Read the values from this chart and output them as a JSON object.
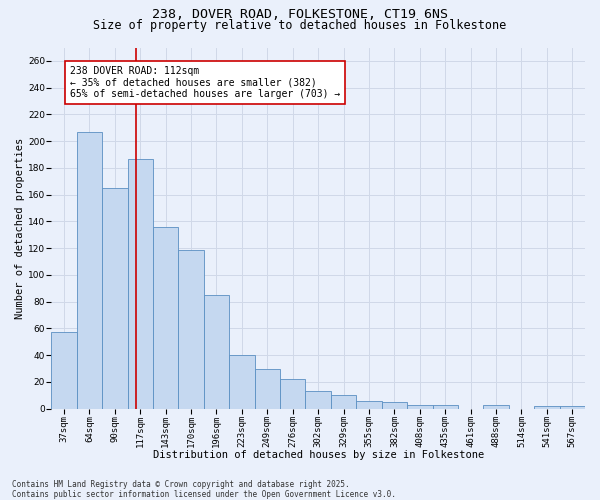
{
  "title_line1": "238, DOVER ROAD, FOLKESTONE, CT19 6NS",
  "title_line2": "Size of property relative to detached houses in Folkestone",
  "xlabel": "Distribution of detached houses by size in Folkestone",
  "ylabel": "Number of detached properties",
  "categories": [
    "37sqm",
    "64sqm",
    "90sqm",
    "117sqm",
    "143sqm",
    "170sqm",
    "196sqm",
    "223sqm",
    "249sqm",
    "276sqm",
    "302sqm",
    "329sqm",
    "355sqm",
    "382sqm",
    "408sqm",
    "435sqm",
    "461sqm",
    "488sqm",
    "514sqm",
    "541sqm",
    "567sqm"
  ],
  "values": [
    57,
    207,
    165,
    187,
    136,
    119,
    85,
    40,
    30,
    22,
    13,
    10,
    6,
    5,
    3,
    3,
    0,
    3,
    0,
    2,
    2
  ],
  "bar_color": "#c5d8f0",
  "bar_edge_color": "#5a8fc2",
  "vline_color": "#cc0000",
  "annotation_text": "238 DOVER ROAD: 112sqm\n← 35% of detached houses are smaller (382)\n65% of semi-detached houses are larger (703) →",
  "annotation_box_color": "white",
  "annotation_box_edge_color": "#cc0000",
  "ylim": [
    0,
    270
  ],
  "yticks": [
    0,
    20,
    40,
    60,
    80,
    100,
    120,
    140,
    160,
    180,
    200,
    220,
    240,
    260
  ],
  "grid_color": "#d0d8e8",
  "background_color": "#eaf0fb",
  "footer_text": "Contains HM Land Registry data © Crown copyright and database right 2025.\nContains public sector information licensed under the Open Government Licence v3.0.",
  "title_fontsize": 9.5,
  "subtitle_fontsize": 8.5,
  "xlabel_fontsize": 7.5,
  "ylabel_fontsize": 7.5,
  "tick_fontsize": 6.5,
  "annotation_fontsize": 7,
  "footer_fontsize": 5.5
}
